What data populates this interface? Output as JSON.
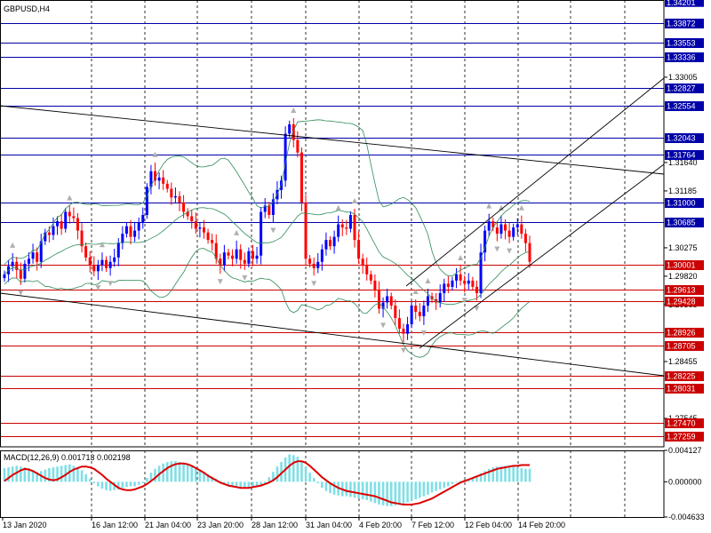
{
  "window": {
    "symbol_label": "GBPUSD,H4",
    "indicator_label": "MACD(12,26,9) 0.001713 0.002198"
  },
  "colors": {
    "background": "#ffffff",
    "grid": "#000000",
    "bull_candle": "#0000ff",
    "bear_candle": "#ff0000",
    "upper_level_line": "#0000aa",
    "lower_level_line": "#cc0000",
    "upper_tag": "#0000aa",
    "lower_tag": "#cc0000",
    "bands": "#2e8b57",
    "trend_lines": "#000000",
    "macd_hist": "#7fdfe6",
    "macd_signal": "#dd0000",
    "fractals": "#b0b0b0"
  },
  "chart_data": [
    {
      "type": "candlestick",
      "title": "GBPUSD,H4",
      "timeframe": "H4",
      "ylim": [
        1.2709,
        1.3424
      ],
      "y_tick_labels": [
        "1.33005",
        "1.31640",
        "1.31185",
        "1.30275",
        "1.29820",
        "1.29365",
        "1.28455",
        "1.27545"
      ],
      "x_tick_labels": [
        "13 Jan 2020",
        "16 Jan 12:00",
        "21 Jan 04:00",
        "23 Jan 20:00",
        "28 Jan 12:00",
        "31 Jan 04:00",
        "4 Feb 20:00",
        "7 Feb 12:00",
        "12 Feb 04:00",
        "14 Feb 20:00"
      ],
      "grid": true,
      "close_series": [
        1.2985,
        1.2998,
        1.3005,
        1.2992,
        1.2978,
        1.3002,
        1.301,
        1.302,
        1.3005,
        1.3038,
        1.3052,
        1.3048,
        1.3062,
        1.307,
        1.3058,
        1.3085,
        1.3078,
        1.3075,
        1.3055,
        1.303,
        1.3012,
        1.3,
        1.299,
        1.3,
        1.3008,
        1.2995,
        1.3005,
        1.3012,
        1.3035,
        1.305,
        1.3062,
        1.3045,
        1.3055,
        1.3068,
        1.308,
        1.3125,
        1.315,
        1.3135,
        1.314,
        1.313,
        1.3122,
        1.3108,
        1.311,
        1.31,
        1.3085,
        1.3078,
        1.307,
        1.3058,
        1.306,
        1.3052,
        1.304,
        1.3035,
        1.301,
        1.3,
        1.302,
        1.3015,
        1.301,
        1.3025,
        1.3008,
        1.3002,
        1.3022,
        1.301,
        1.3015,
        1.3085,
        1.3095,
        1.308,
        1.3105,
        1.312,
        1.3135,
        1.321,
        1.3225,
        1.32,
        1.318,
        1.31,
        1.301,
        1.3002,
        1.2995,
        1.3005,
        1.3025,
        1.304,
        1.303,
        1.3045,
        1.3065,
        1.306,
        1.3058,
        1.308,
        1.304,
        1.301,
        1.3,
        1.2985,
        1.2975,
        1.296,
        1.293,
        1.294,
        1.295,
        1.2935,
        1.2915,
        1.2898,
        1.289,
        1.2905,
        1.2935,
        1.2925,
        1.2918,
        1.2935,
        1.295,
        1.2945,
        1.294,
        1.2955,
        1.297,
        1.2965,
        1.2975,
        1.2985,
        1.2975,
        1.297,
        1.2975,
        1.2965,
        1.2955,
        1.302,
        1.3055,
        1.307,
        1.306,
        1.305,
        1.3065,
        1.3055,
        1.3045,
        1.306,
        1.3065,
        1.305,
        1.3035,
        1.3005
      ],
      "horizontal_levels": [
        {
          "label": "1.33872",
          "group": "upper"
        },
        {
          "label": "1.33553",
          "group": "upper"
        },
        {
          "label": "1.33336",
          "group": "upper"
        },
        {
          "label": "1.32827",
          "group": "upper"
        },
        {
          "label": "1.32554",
          "group": "upper"
        },
        {
          "label": "1.32043",
          "group": "upper"
        },
        {
          "label": "1.31764",
          "group": "upper"
        },
        {
          "label": "1.31000",
          "group": "upper"
        },
        {
          "label": "1.30685",
          "group": "upper"
        },
        {
          "label": "1.30001",
          "group": "lower"
        },
        {
          "label": "1.29613",
          "group": "lower"
        },
        {
          "label": "1.29428",
          "group": "lower"
        },
        {
          "label": "1.28926",
          "group": "lower"
        },
        {
          "label": "1.28705",
          "group": "lower"
        },
        {
          "label": "1.28225",
          "group": "lower"
        },
        {
          "label": "1.28031",
          "group": "lower"
        },
        {
          "label": "1.27470",
          "group": "lower"
        },
        {
          "label": "1.27259",
          "group": "lower"
        }
      ],
      "partial_labels": {
        "top": "1.34201"
      }
    },
    {
      "type": "histogram+line",
      "title": "MACD(12,26,9) 0.001713 0.002198",
      "ylim": [
        -0.004633,
        0.004127
      ],
      "y_tick_labels": [
        "0.004127",
        "0.000000",
        "-0.004633"
      ],
      "histogram": [
        0.0018,
        0.0019,
        0.002,
        0.0021,
        0.002,
        0.0019,
        0.0018,
        0.0015,
        0.0013,
        0.0014,
        0.0016,
        0.0018,
        0.0019,
        0.002,
        0.0021,
        0.0022,
        0.0023,
        0.0021,
        0.0019,
        0.0015,
        0.001,
        0.0004,
        -0.0002,
        -0.0006,
        -0.0009,
        -0.0011,
        -0.0012,
        -0.0011,
        -0.001,
        -0.0008,
        -0.0007,
        -0.0006,
        -0.0006,
        -0.0004,
        -0.0002,
        0.0005,
        0.0012,
        0.0017,
        0.0021,
        0.0024,
        0.0026,
        0.0027,
        0.0027,
        0.0026,
        0.0025,
        0.0023,
        0.0021,
        0.0019,
        0.0016,
        0.0013,
        0.001,
        0.0007,
        0.0004,
        0.0001,
        -0.0002,
        -0.0004,
        -0.0006,
        -0.0007,
        -0.0008,
        -0.0009,
        -0.0009,
        -0.0008,
        -0.0007,
        -0.0005,
        -0.0002,
        0.0006,
        0.0013,
        0.002,
        0.0026,
        0.0032,
        0.0036,
        0.0035,
        0.0033,
        0.0027,
        0.002,
        0.0012,
        0.0005,
        -0.0002,
        -0.0008,
        -0.0012,
        -0.0015,
        -0.0017,
        -0.0018,
        -0.0019,
        -0.0019,
        -0.002,
        -0.0021,
        -0.0022,
        -0.0023,
        -0.0024,
        -0.0026,
        -0.0028,
        -0.003,
        -0.0031,
        -0.0032,
        -0.0032,
        -0.0031,
        -0.003,
        -0.0029,
        -0.0027,
        -0.0025,
        -0.0023,
        -0.0021,
        -0.0019,
        -0.0017,
        -0.0014,
        -0.0012,
        -0.001,
        -0.0008,
        -0.0006,
        -0.0003,
        -0.0001,
        0.0001,
        0.0003,
        0.0004,
        0.0006,
        0.0008,
        0.0011,
        0.0014,
        0.0017,
        0.0019,
        0.002,
        0.002,
        0.0021,
        0.0021,
        0.002,
        0.0019,
        0.0018,
        0.0017,
        0.0017
      ],
      "signal": [
        0.0001,
        0.0005,
        0.0009,
        0.0012,
        0.0015,
        0.0017,
        0.0016,
        0.0014,
        0.0011,
        0.0008,
        0.0005,
        0.0003,
        0.0002,
        0.0003,
        0.0006,
        0.0009,
        0.0013,
        0.0016,
        0.0018,
        0.002,
        0.002,
        0.0019,
        0.0017,
        0.0013,
        0.0009,
        0.0004,
        0.0,
        -0.0004,
        -0.0008,
        -0.001,
        -0.0011,
        -0.0011,
        -0.001,
        -0.0008,
        -0.0006,
        -0.0003,
        0.0001,
        0.0005,
        0.001,
        0.0014,
        0.0018,
        0.0021,
        0.0023,
        0.0024,
        0.0024,
        0.0023,
        0.0021,
        0.0018,
        0.0015,
        0.0012,
        0.0008,
        0.0005,
        0.0002,
        -0.0001,
        -0.0003,
        -0.0005,
        -0.0006,
        -0.0007,
        -0.0008,
        -0.0008,
        -0.0008,
        -0.0007,
        -0.0006,
        -0.0005,
        -0.0003,
        -0.0001,
        0.0002,
        0.0006,
        0.0011,
        0.0016,
        0.0021,
        0.0025,
        0.0027,
        0.0027,
        0.0025,
        0.0021,
        0.0016,
        0.0011,
        0.0006,
        0.0002,
        -0.0002,
        -0.0005,
        -0.0008,
        -0.001,
        -0.0012,
        -0.0013,
        -0.0014,
        -0.0015,
        -0.0016,
        -0.0017,
        -0.0018,
        -0.0019,
        -0.0021,
        -0.0023,
        -0.0025,
        -0.0027,
        -0.0028,
        -0.0029,
        -0.003,
        -0.003,
        -0.003,
        -0.0029,
        -0.0028,
        -0.0026,
        -0.0024,
        -0.0022,
        -0.0019,
        -0.0016,
        -0.0013,
        -0.001,
        -0.0007,
        -0.0004,
        -0.0001,
        0.0001,
        0.0003,
        0.0005,
        0.0007,
        0.0009,
        0.0011,
        0.0013,
        0.0015,
        0.0017,
        0.0018,
        0.0019,
        0.002,
        0.0021,
        0.0021,
        0.0022,
        0.0022,
        0.0022
      ]
    }
  ]
}
